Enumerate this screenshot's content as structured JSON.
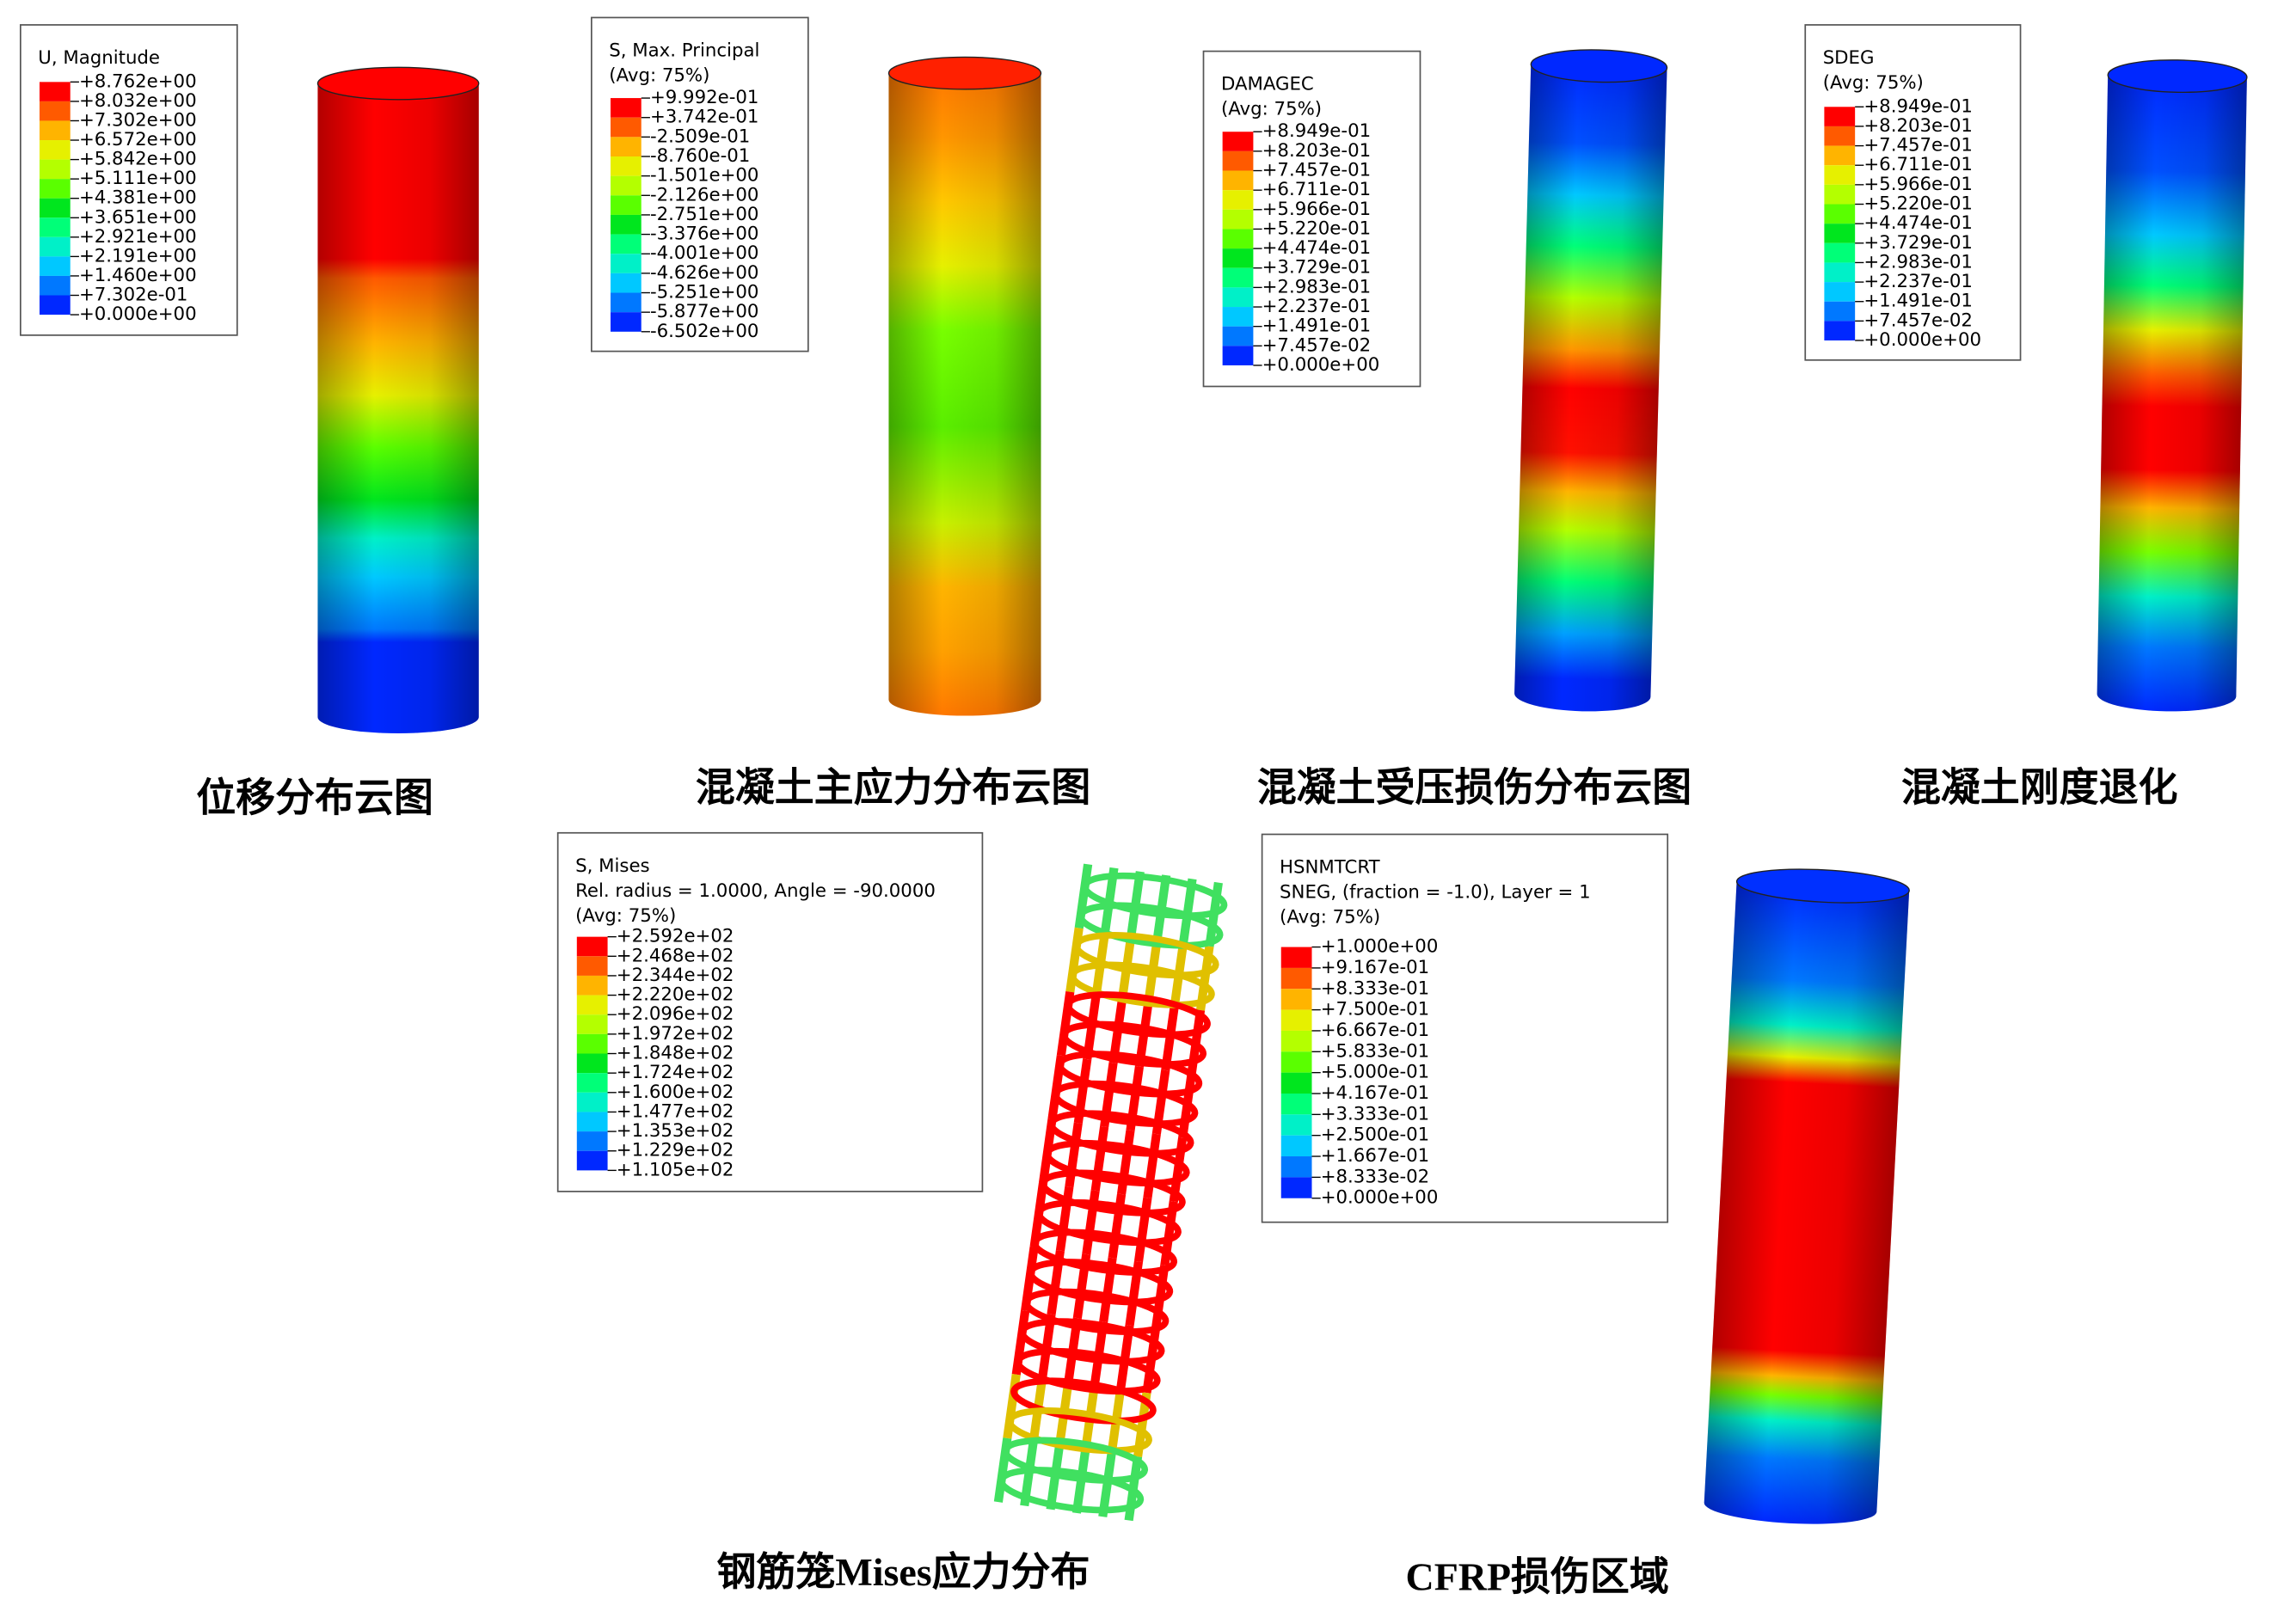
{
  "panels": [
    {
      "legend_title": [
        "U, Magnitude"
      ],
      "legend_values": [
        "+8.762e+00",
        "+8.032e+00",
        "+7.302e+00",
        "+6.572e+00",
        "+5.842e+00",
        "+5.111e+00",
        "+4.381e+00",
        "+3.651e+00",
        "+2.921e+00",
        "+2.191e+00",
        "+1.460e+00",
        "+7.302e-01",
        "+0.000e+00"
      ],
      "caption": "位移分布云图"
    },
    {
      "legend_title": [
        "S, Max. Principal",
        "(Avg: 75%)"
      ],
      "legend_values": [
        "+9.992e-01",
        "+3.742e-01",
        "-2.509e-01",
        "-8.760e-01",
        "-1.501e+00",
        "-2.126e+00",
        "-2.751e+00",
        "-3.376e+00",
        "-4.001e+00",
        "-4.626e+00",
        "-5.251e+00",
        "-5.877e+00",
        "-6.502e+00"
      ],
      "caption": "混凝土主应力分布云图"
    },
    {
      "legend_title": [
        "DAMAGEC",
        "(Avg: 75%)"
      ],
      "legend_values": [
        "+8.949e-01",
        "+8.203e-01",
        "+7.457e-01",
        "+6.711e-01",
        "+5.966e-01",
        "+5.220e-01",
        "+4.474e-01",
        "+3.729e-01",
        "+2.983e-01",
        "+2.237e-01",
        "+1.491e-01",
        "+7.457e-02",
        "+0.000e+00"
      ],
      "caption": "混凝土受压损伤分布云图"
    },
    {
      "legend_title": [
        "SDEG",
        "(Avg: 75%)"
      ],
      "legend_values": [
        "+8.949e-01",
        "+8.203e-01",
        "+7.457e-01",
        "+6.711e-01",
        "+5.966e-01",
        "+5.220e-01",
        "+4.474e-01",
        "+3.729e-01",
        "+2.983e-01",
        "+2.237e-01",
        "+1.491e-01",
        "+7.457e-02",
        "+0.000e+00"
      ],
      "caption": "混凝土刚度退化"
    },
    {
      "legend_title": [
        "S, Mises",
        "Rel. radius = 1.0000, Angle = -90.0000",
        "(Avg: 75%)"
      ],
      "legend_values": [
        "+2.592e+02",
        "+2.468e+02",
        "+2.344e+02",
        "+2.220e+02",
        "+2.096e+02",
        "+1.972e+02",
        "+1.848e+02",
        "+1.724e+02",
        "+1.600e+02",
        "+1.477e+02",
        "+1.353e+02",
        "+1.229e+02",
        "+1.105e+02"
      ],
      "caption": "钢筋笼Mises应力分布"
    },
    {
      "legend_title": [
        "HSNMTCRT",
        "SNEG, (fraction = -1.0), Layer = 1",
        "(Avg: 75%)"
      ],
      "legend_values": [
        "+1.000e+00",
        "+9.167e-01",
        "+8.333e-01",
        "+7.500e-01",
        "+6.667e-01",
        "+5.833e-01",
        "+5.000e-01",
        "+4.167e-01",
        "+3.333e-01",
        "+2.500e-01",
        "+1.667e-01",
        "+8.333e-02",
        "+0.000e+00"
      ],
      "caption": "CFRP损伤区域"
    }
  ]
}
